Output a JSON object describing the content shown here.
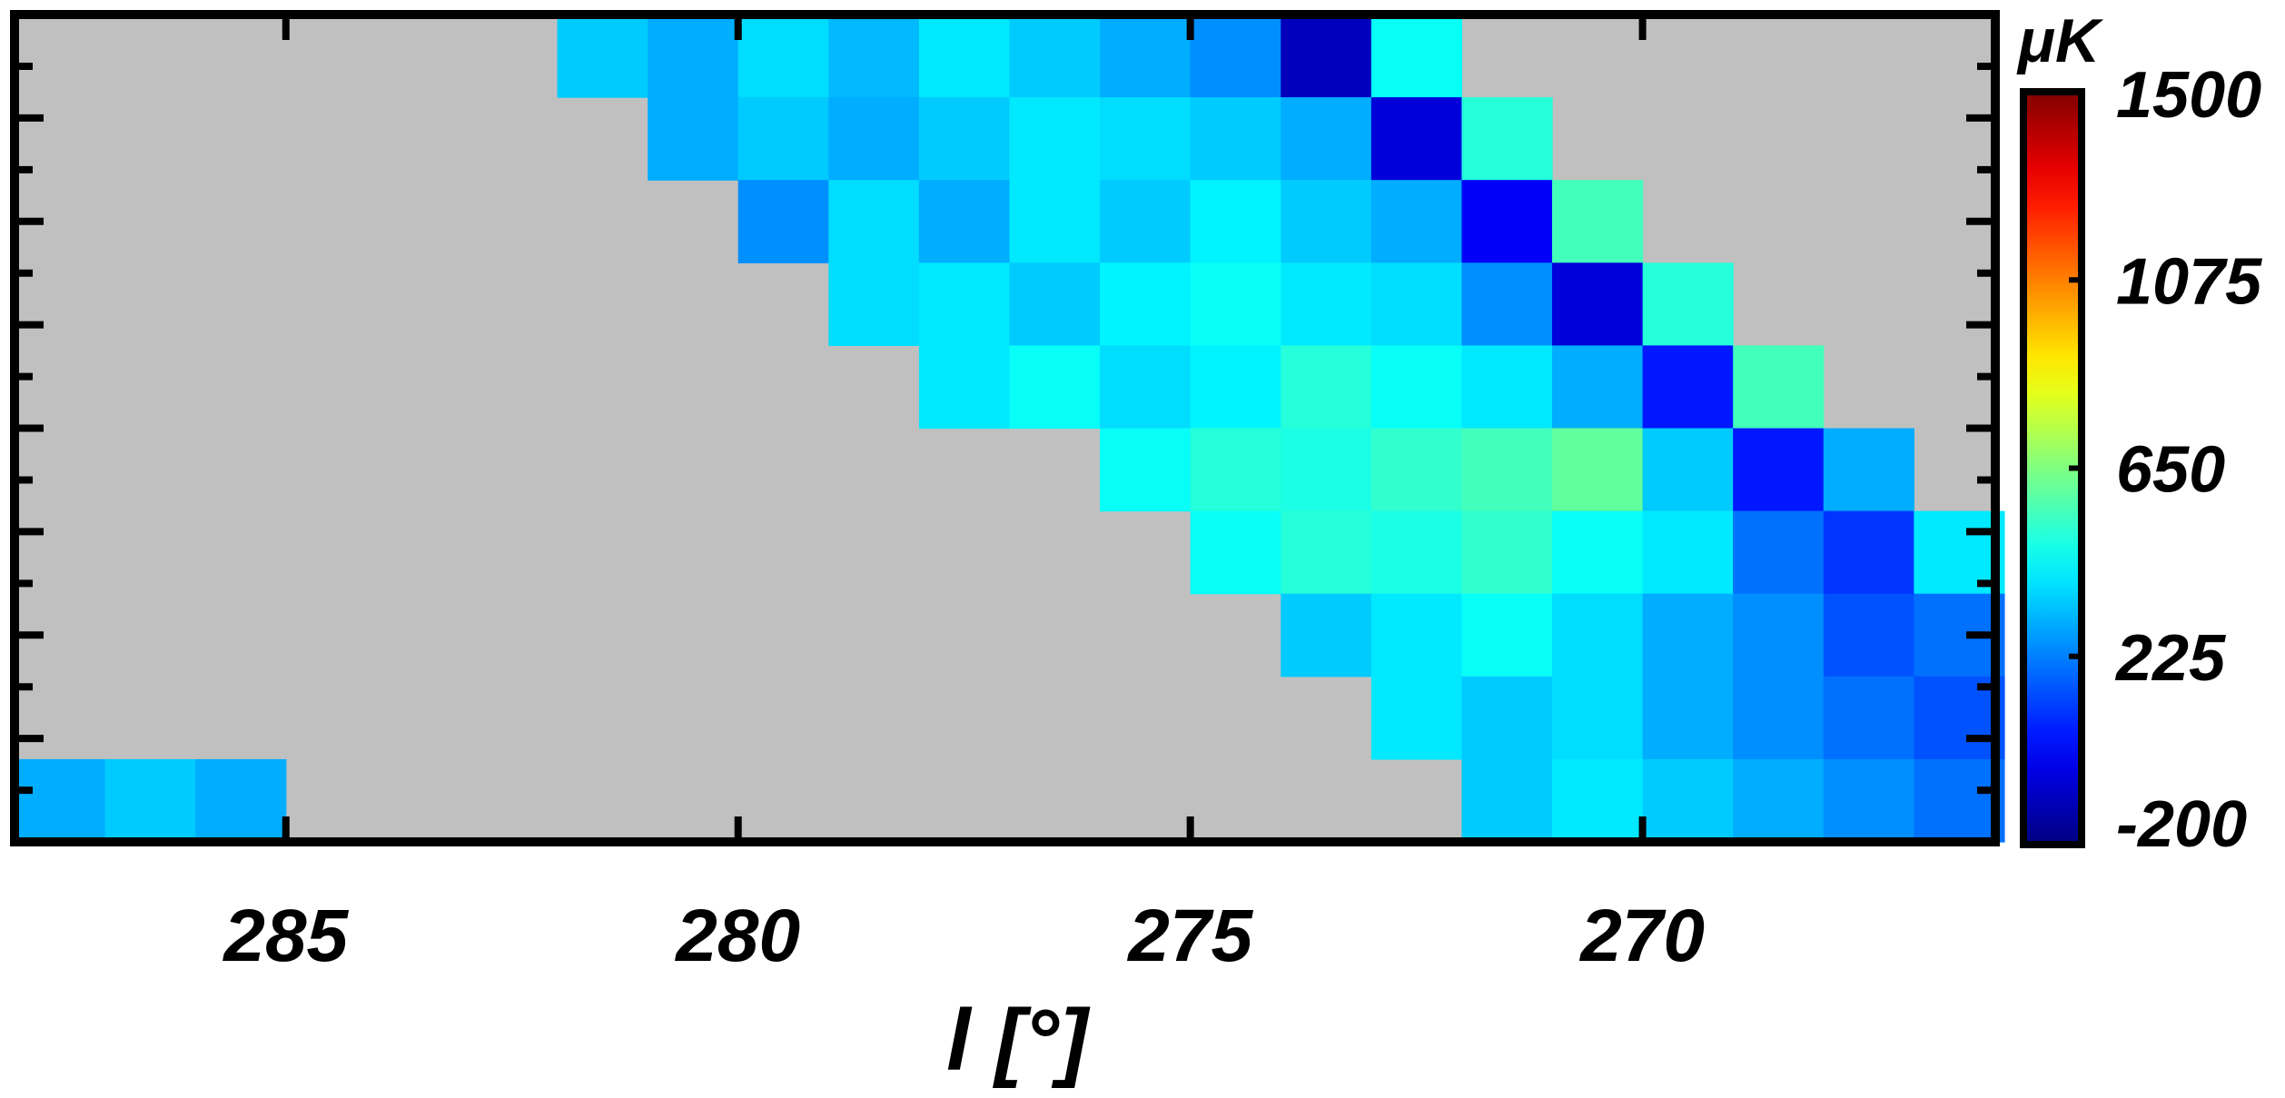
{
  "chart_data": {
    "type": "heatmap",
    "colormap": "jet",
    "x_label": "l [°]",
    "colorbar_label": "μK",
    "xlim": [
      288,
      266.1
    ],
    "xticks": [
      285,
      280,
      275,
      270
    ],
    "clim": [
      -200,
      1500
    ],
    "cticks": [
      1500,
      1075,
      650,
      225,
      -200
    ],
    "x": [
      287.5,
      286.5,
      285.5,
      284.5,
      283.5,
      282.5,
      281.5,
      280.5,
      279.5,
      278.5,
      277.5,
      276.5,
      275.5,
      274.5,
      273.5,
      272.5,
      271.5,
      270.5,
      269.5,
      268.5,
      267.5,
      266.5
    ],
    "z": [
      [
        null,
        null,
        null,
        null,
        null,
        null,
        350,
        300,
        380,
        320,
        400,
        350,
        300,
        250,
        -100,
        450,
        null,
        null,
        null,
        null,
        null,
        null
      ],
      [
        null,
        null,
        null,
        null,
        null,
        null,
        null,
        300,
        350,
        300,
        350,
        400,
        380,
        350,
        300,
        -50,
        500,
        null,
        null,
        null,
        null,
        null
      ],
      [
        null,
        null,
        null,
        null,
        null,
        null,
        null,
        null,
        250,
        380,
        300,
        400,
        350,
        420,
        350,
        300,
        0,
        550,
        null,
        null,
        null,
        null
      ],
      [
        null,
        null,
        null,
        null,
        null,
        null,
        null,
        null,
        null,
        380,
        400,
        350,
        420,
        450,
        400,
        380,
        250,
        -50,
        500,
        null,
        null,
        null
      ],
      [
        null,
        null,
        null,
        null,
        null,
        null,
        null,
        null,
        null,
        null,
        400,
        450,
        380,
        420,
        500,
        450,
        400,
        300,
        50,
        550,
        null,
        null
      ],
      [
        null,
        null,
        null,
        null,
        null,
        null,
        null,
        null,
        null,
        null,
        null,
        null,
        450,
        500,
        480,
        520,
        550,
        600,
        350,
        50,
        300,
        null
      ],
      [
        null,
        null,
        null,
        null,
        null,
        null,
        null,
        null,
        null,
        null,
        null,
        null,
        null,
        450,
        500,
        480,
        520,
        450,
        400,
        200,
        100,
        400
      ],
      [
        null,
        null,
        null,
        null,
        null,
        null,
        null,
        null,
        null,
        null,
        null,
        null,
        null,
        null,
        350,
        400,
        450,
        380,
        300,
        250,
        150,
        200
      ],
      [
        null,
        null,
        null,
        null,
        null,
        null,
        null,
        null,
        null,
        null,
        null,
        null,
        null,
        null,
        null,
        400,
        350,
        380,
        300,
        250,
        200,
        150
      ],
      [
        300,
        350,
        300,
        null,
        null,
        null,
        null,
        null,
        null,
        null,
        null,
        null,
        null,
        null,
        null,
        null,
        350,
        400,
        350,
        300,
        250,
        200
      ]
    ]
  }
}
